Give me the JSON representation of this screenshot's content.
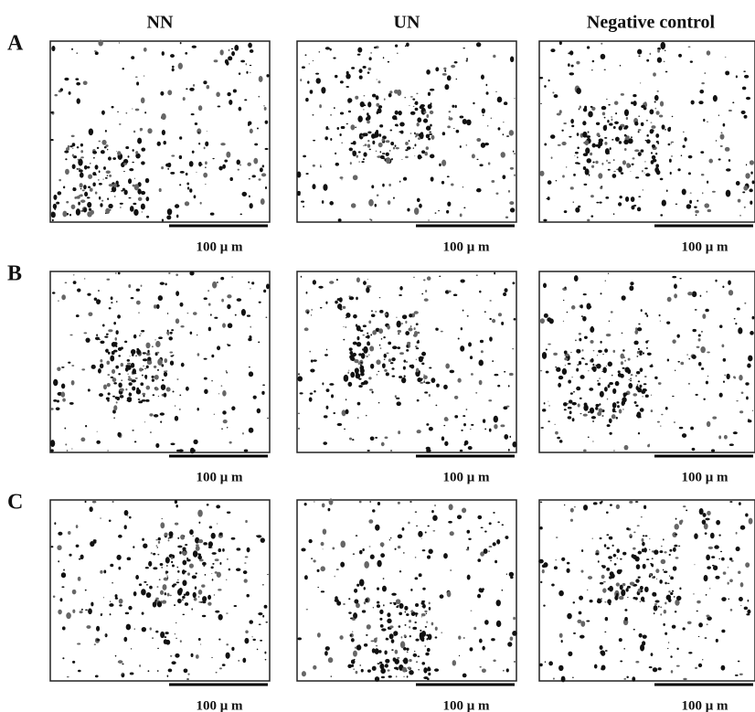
{
  "columns": [
    "NN",
    "UN",
    "Negative control"
  ],
  "rows": [
    {
      "label": "A",
      "scale_labels": [
        "100 μ m",
        "100 μ m",
        "100 μ m"
      ]
    },
    {
      "label": "B",
      "scale_labels": [
        "100 μ m",
        "100 μ m",
        "100 μ m"
      ]
    },
    {
      "label": "C",
      "scale_labels": [
        "100 μ m",
        "100 μ m",
        "100 μ m"
      ]
    }
  ]
}
